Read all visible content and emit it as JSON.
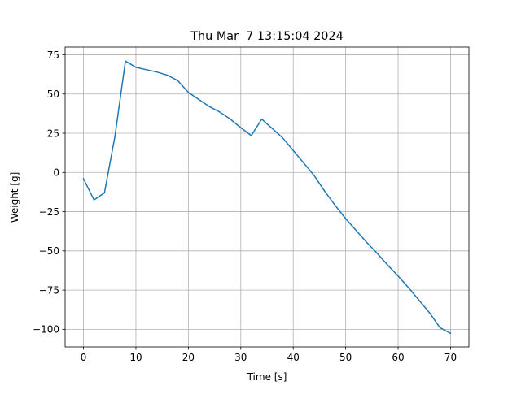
{
  "chart_data": {
    "type": "line",
    "title": "Thu Mar  7 13:15:04 2024",
    "xlabel": "Time [s]",
    "ylabel": "Weight [g]",
    "xlim": [
      -3.5,
      73.5
    ],
    "ylim": [
      -111.2,
      79.9
    ],
    "xticks": [
      0,
      10,
      20,
      30,
      40,
      50,
      60,
      70
    ],
    "yticks": [
      -100,
      -75,
      -50,
      -25,
      0,
      25,
      50,
      75
    ],
    "xtick_labels": [
      "0",
      "10",
      "20",
      "30",
      "40",
      "50",
      "60",
      "70"
    ],
    "ytick_labels": [
      "−100",
      "−75",
      "−50",
      "−25",
      "0",
      "25",
      "50",
      "75"
    ],
    "grid": true,
    "series": [
      {
        "color": "#1f77b4",
        "x": [
          0,
          2,
          4,
          6,
          8,
          10,
          12,
          14,
          16,
          18,
          20,
          22,
          24,
          26,
          28,
          30,
          32,
          34,
          36,
          38,
          40,
          42,
          44,
          46,
          48,
          50,
          52,
          54,
          56,
          58,
          60,
          62,
          64,
          66,
          68,
          70
        ],
        "y": [
          -4,
          -17.5,
          -13,
          23,
          71,
          67,
          65.5,
          64,
          62,
          58.5,
          51,
          46.5,
          42,
          38.5,
          34,
          28.5,
          23.5,
          34,
          28,
          22,
          14,
          6,
          -2,
          -12,
          -21,
          -29.5,
          -37,
          -44.5,
          -51.5,
          -59,
          -66,
          -73.5,
          -81.5,
          -89.5,
          -99,
          -102.5
        ]
      }
    ]
  }
}
